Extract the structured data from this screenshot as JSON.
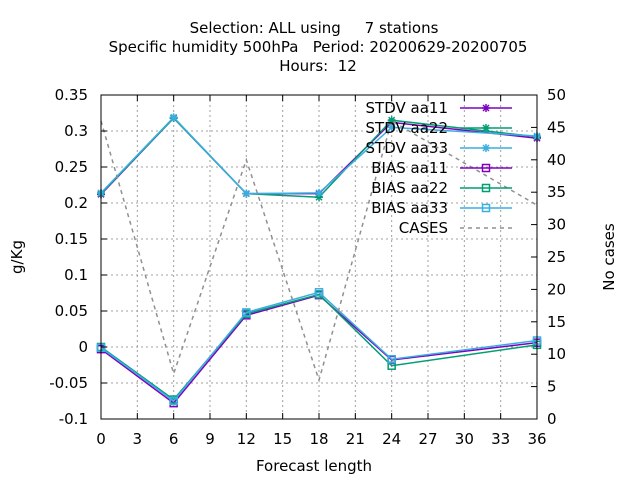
{
  "chart_data": {
    "type": "line",
    "title_lines": [
      "Selection: ALL using     7 stations",
      "Specific humidity 500hPa   Period: 20200629-20200705",
      "Hours:  12"
    ],
    "xlabel": "Forecast length",
    "ylabel": "g/Kg",
    "y2label": "No cases",
    "x": [
      0,
      6,
      12,
      18,
      24,
      36
    ],
    "xticks": [
      0,
      3,
      6,
      9,
      12,
      15,
      18,
      21,
      24,
      27,
      30,
      33,
      36
    ],
    "xlim": [
      0,
      36
    ],
    "ylim": [
      -0.1,
      0.35
    ],
    "yticks": [
      -0.1,
      -0.05,
      0,
      0.05,
      0.1,
      0.15,
      0.2,
      0.25,
      0.3,
      0.35
    ],
    "ytick_labels": [
      "-0.1",
      "-0.05",
      "0",
      "0.05",
      "0.1",
      "0.15",
      "0.2",
      "0.25",
      "0.3",
      "0.35"
    ],
    "y2lim": [
      0,
      50
    ],
    "y2ticks": [
      0,
      5,
      10,
      15,
      20,
      25,
      30,
      35,
      40,
      45,
      50
    ],
    "grid": true,
    "legend_position": "top-right",
    "series": [
      {
        "name": "STDV aa11",
        "axis": "y",
        "marker": "star",
        "dashed": false,
        "color": "#8000c0",
        "values": [
          0.212,
          0.318,
          0.213,
          0.213,
          0.312,
          0.29
        ]
      },
      {
        "name": "STDV aa22",
        "axis": "y",
        "marker": "star",
        "dashed": false,
        "color": "#009e73",
        "values": [
          0.213,
          0.318,
          0.213,
          0.208,
          0.315,
          0.292
        ]
      },
      {
        "name": "STDV aa33",
        "axis": "y",
        "marker": "star",
        "dashed": false,
        "color": "#3aaee0",
        "values": [
          0.214,
          0.319,
          0.213,
          0.214,
          0.305,
          0.293
        ]
      },
      {
        "name": "BIAS aa11",
        "axis": "y",
        "marker": "square",
        "dashed": false,
        "color": "#8000c0",
        "values": [
          -0.003,
          -0.078,
          0.044,
          0.072,
          -0.018,
          0.006
        ]
      },
      {
        "name": "BIAS aa22",
        "axis": "y",
        "marker": "square",
        "dashed": false,
        "color": "#009e73",
        "values": [
          0.0,
          -0.073,
          0.046,
          0.073,
          -0.026,
          0.003
        ]
      },
      {
        "name": "BIAS aa33",
        "axis": "y",
        "marker": "square",
        "dashed": false,
        "color": "#3aaee0",
        "values": [
          -0.001,
          -0.075,
          0.048,
          0.076,
          -0.017,
          0.009
        ]
      },
      {
        "name": "CASES",
        "axis": "y2",
        "marker": "none",
        "dashed": true,
        "color": "#909090",
        "values": [
          46,
          7,
          40,
          6,
          46,
          33
        ]
      }
    ]
  }
}
